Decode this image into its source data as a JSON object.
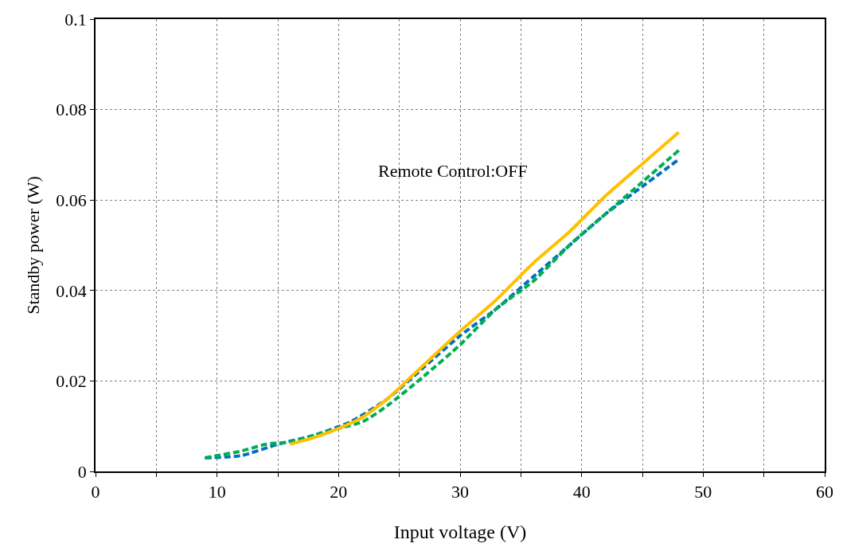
{
  "chart_data": {
    "type": "line",
    "xlabel": "Input voltage (V)",
    "ylabel": "Standby power (W)",
    "annotations": [
      "Remote Control:OFF"
    ],
    "xlim": [
      0,
      60
    ],
    "xticks": [
      0,
      {
        "value": 5,
        "label": null
      },
      10,
      {
        "value": 15,
        "label": null
      },
      20,
      {
        "value": 25,
        "label": null
      },
      30,
      {
        "value": 35,
        "label": null
      },
      40,
      {
        "value": 45,
        "label": null
      },
      50,
      {
        "value": 55,
        "label": null
      },
      60
    ],
    "ylim": [
      0,
      0.1
    ],
    "yticks": [
      0,
      0.02,
      0.04,
      0.06,
      0.08,
      0.1
    ],
    "grid": true,
    "legend": false,
    "marker": "none",
    "series": [
      {
        "color": "#0070c0",
        "line_style": "dashed",
        "x": [
          9,
          12,
          15,
          18,
          21,
          24,
          27,
          30,
          33,
          36,
          39,
          42,
          45,
          48
        ],
        "values": [
          0.003,
          0.0035,
          0.006,
          0.008,
          0.011,
          0.016,
          0.023,
          0.03,
          0.036,
          0.043,
          0.05,
          0.057,
          0.063,
          0.069
        ]
      },
      {
        "color": "#00b050",
        "line_style": "dashed",
        "x": [
          9,
          10,
          12,
          14,
          16,
          18,
          20,
          22,
          24,
          27,
          30,
          33,
          36,
          39,
          42,
          45,
          48
        ],
        "values": [
          0.003,
          0.0035,
          0.0045,
          0.006,
          0.0065,
          0.008,
          0.0095,
          0.011,
          0.0145,
          0.021,
          0.028,
          0.036,
          0.042,
          0.05,
          0.057,
          0.064,
          0.071
        ]
      },
      {
        "color": "#ffc000",
        "line_style": "solid",
        "x": [
          16,
          18,
          20,
          22,
          24,
          26,
          28,
          30,
          33,
          36,
          39,
          42,
          45,
          48
        ],
        "values": [
          0.006,
          0.0075,
          0.0095,
          0.012,
          0.016,
          0.021,
          0.026,
          0.031,
          0.038,
          0.046,
          0.053,
          0.061,
          0.068,
          0.075
        ]
      }
    ]
  }
}
